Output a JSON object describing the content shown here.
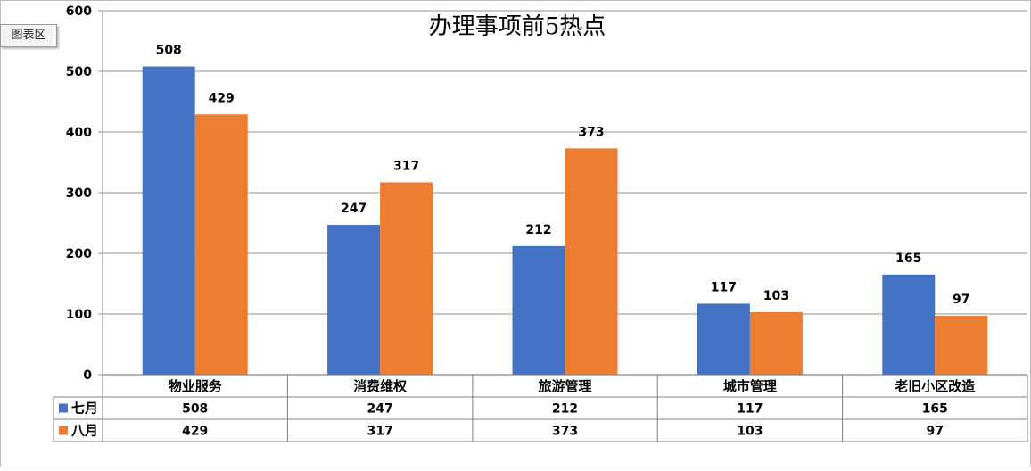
{
  "chart_tag": "图表区",
  "chart_data": {
    "type": "bar",
    "title": "办理事项前5热点",
    "categories": [
      "物业服务",
      "消费维权",
      "旅游管理",
      "城市管理",
      "老旧小区改造"
    ],
    "series": [
      {
        "name": "七月",
        "values": [
          508,
          247,
          212,
          117,
          165
        ],
        "color": "#4472C4"
      },
      {
        "name": "八月",
        "values": [
          429,
          317,
          373,
          103,
          97
        ],
        "color": "#ED7D31"
      }
    ],
    "ylim": [
      0,
      600
    ],
    "yticks": [
      0,
      100,
      200,
      300,
      400,
      500,
      600
    ],
    "grid": true,
    "legend": "data-table"
  }
}
